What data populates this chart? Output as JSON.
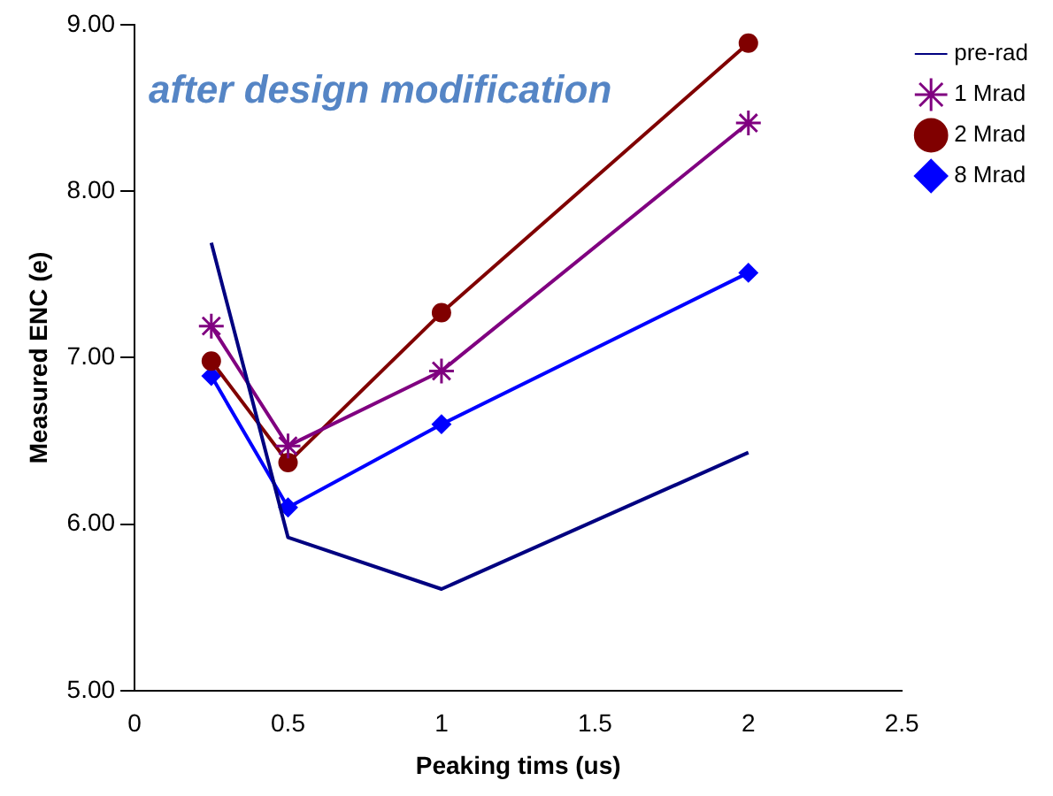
{
  "chart_data": {
    "type": "line",
    "title": "after design modification",
    "xlabel": "Peaking tims (us)",
    "ylabel": "Measured ENC (e)",
    "x": [
      0.25,
      0.5,
      1,
      2
    ],
    "series": [
      {
        "name": "pre-rad",
        "color": "#000080",
        "marker": "none",
        "values": [
          7.69,
          5.92,
          5.61,
          6.43
        ]
      },
      {
        "name": "1 Mrad",
        "color": "#800080",
        "marker": "cross",
        "values": [
          7.19,
          6.47,
          6.92,
          8.41
        ]
      },
      {
        "name": "2 Mrad",
        "color": "#800000",
        "marker": "circle",
        "values": [
          6.98,
          6.37,
          7.27,
          8.89
        ]
      },
      {
        "name": "8 Mrad",
        "color": "#0000ff",
        "marker": "diamond",
        "values": [
          6.89,
          6.1,
          6.6,
          7.51
        ]
      }
    ],
    "xlim": [
      0,
      2.5
    ],
    "xticks": [
      0,
      0.5,
      1,
      1.5,
      2,
      2.5
    ],
    "ylim": [
      5,
      9
    ],
    "yticks": [
      {
        "value": 5,
        "label": "5.00"
      },
      {
        "value": 6,
        "label": "6.00"
      },
      {
        "value": 7,
        "label": "7.00"
      },
      {
        "value": 8,
        "label": "8.00"
      },
      {
        "value": 9,
        "label": "9.00"
      }
    ],
    "grid": false,
    "legend": "right"
  }
}
